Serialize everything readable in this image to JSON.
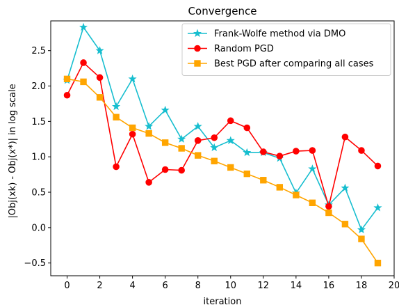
{
  "chart_data": {
    "type": "line",
    "title": "Convergence",
    "xlabel": "iteration",
    "ylabel": "|Obj(xk) - Obj(x*)| in log scale",
    "xlim": [
      -1,
      20
    ],
    "ylim": [
      -0.68,
      2.92
    ],
    "xticks": [
      0,
      2,
      4,
      6,
      8,
      10,
      12,
      14,
      16,
      18,
      20
    ],
    "xtick_labels": [
      "0",
      "2",
      "4",
      "6",
      "8",
      "10",
      "12",
      "14",
      "16",
      "18",
      "20"
    ],
    "yticks": [
      -0.5,
      0.0,
      0.5,
      1.0,
      1.5,
      2.0,
      2.5
    ],
    "ytick_labels": [
      "−0.5",
      "0.0",
      "0.5",
      "1.0",
      "1.5",
      "2.0",
      "2.5"
    ],
    "grid": false,
    "legend_position": "top-right",
    "x": [
      0,
      1,
      2,
      3,
      4,
      5,
      6,
      7,
      8,
      9,
      10,
      11,
      12,
      13,
      14,
      15,
      16,
      17,
      18,
      19
    ],
    "series": [
      {
        "name": "Frank-Wolfe method via DMO",
        "color": "#17becf",
        "marker": "star",
        "values": [
          2.08,
          2.83,
          2.5,
          1.71,
          2.1,
          1.43,
          1.66,
          1.25,
          1.43,
          1.13,
          1.23,
          1.06,
          1.06,
          0.98,
          0.49,
          0.83,
          0.32,
          0.56,
          -0.03,
          0.28
        ]
      },
      {
        "name": "Random PGD",
        "color": "#ff0000",
        "marker": "circle",
        "values": [
          1.87,
          2.33,
          2.12,
          0.86,
          1.32,
          0.64,
          0.82,
          0.81,
          1.23,
          1.27,
          1.51,
          1.41,
          1.07,
          1.01,
          1.08,
          1.09,
          0.3,
          1.28,
          1.09,
          0.87
        ]
      },
      {
        "name": "Best PGD after comparing all cases",
        "color": "#ffa500",
        "marker": "square",
        "values": [
          2.1,
          2.06,
          1.84,
          1.56,
          1.41,
          1.33,
          1.2,
          1.12,
          1.02,
          0.94,
          0.85,
          0.76,
          0.67,
          0.57,
          0.46,
          0.35,
          0.21,
          0.05,
          -0.16,
          -0.5
        ]
      }
    ]
  }
}
